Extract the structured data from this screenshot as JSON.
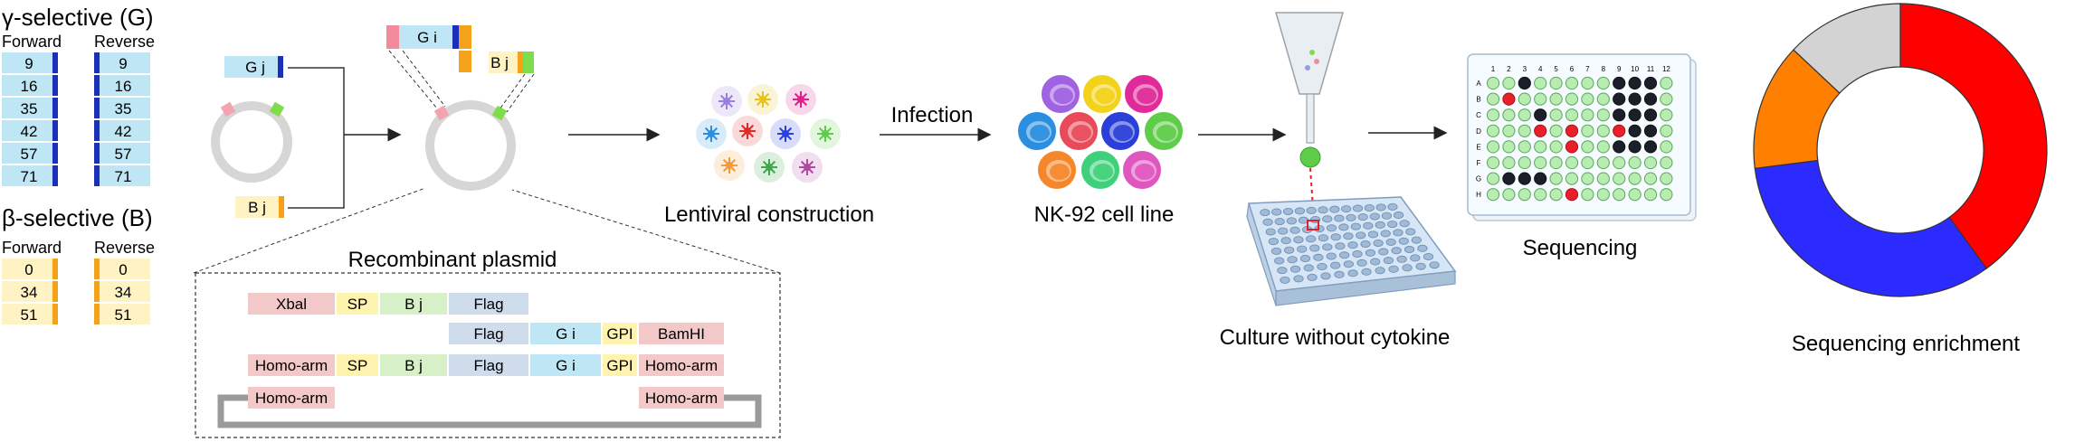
{
  "gamma": {
    "title": "γ-selective (G)",
    "forward_label": "Forward",
    "reverse_label": "Reverse",
    "forward_values": [
      "9",
      "16",
      "35",
      "42",
      "57",
      "71"
    ],
    "reverse_values": [
      "9",
      "16",
      "35",
      "42",
      "57",
      "71"
    ]
  },
  "beta": {
    "title": "β-selective (B)",
    "forward_label": "Forward",
    "reverse_label": "Reverse",
    "forward_values": [
      "0",
      "34",
      "51"
    ],
    "reverse_values": [
      "0",
      "34",
      "51"
    ]
  },
  "plasmid": {
    "gj_label": "G j",
    "bj_label": "B j",
    "gi_label": "G i",
    "bj2_label": "B j",
    "recombinant_title": "Recombinant plasmid",
    "rows": [
      [
        "Xbal",
        "SP",
        "B j",
        "Flag"
      ],
      [
        "Flag",
        "G i",
        "GPI",
        "BamHI"
      ],
      [
        "Homo-arm",
        "SP",
        "B j",
        "Flag",
        "G i",
        "GPI",
        "Homo-arm"
      ],
      [
        "Homo-arm",
        "Homo-arm"
      ]
    ]
  },
  "steps": {
    "lentiviral": "Lentiviral construction",
    "infection": "Infection",
    "nk92": "NK-92 cell line",
    "culture": "Culture without cytokine",
    "sequencing": "Sequencing",
    "enrichment": "Sequencing enrichment"
  },
  "plate": {
    "cols": [
      "1",
      "2",
      "3",
      "4",
      "5",
      "6",
      "7",
      "8",
      "9",
      "10",
      "11",
      "12"
    ],
    "rows": [
      "A",
      "B",
      "C",
      "D",
      "E",
      "F",
      "G",
      "H"
    ]
  },
  "colors": {
    "gamma_fill": "#bfe6f4",
    "beta_fill": "#fff3c4",
    "blue_marker": "#1c2fb8",
    "orange_marker": "#f5a21b"
  },
  "chart_data": {
    "type": "pie",
    "title": "Sequencing enrichment",
    "slices": [
      {
        "label": "red",
        "value": 40,
        "color": "#ff0000"
      },
      {
        "label": "blue",
        "value": 33,
        "color": "#2b2bff"
      },
      {
        "label": "orange",
        "value": 14,
        "color": "#ff8000"
      },
      {
        "label": "gray",
        "value": 13,
        "color": "#d3d3d3"
      }
    ]
  }
}
